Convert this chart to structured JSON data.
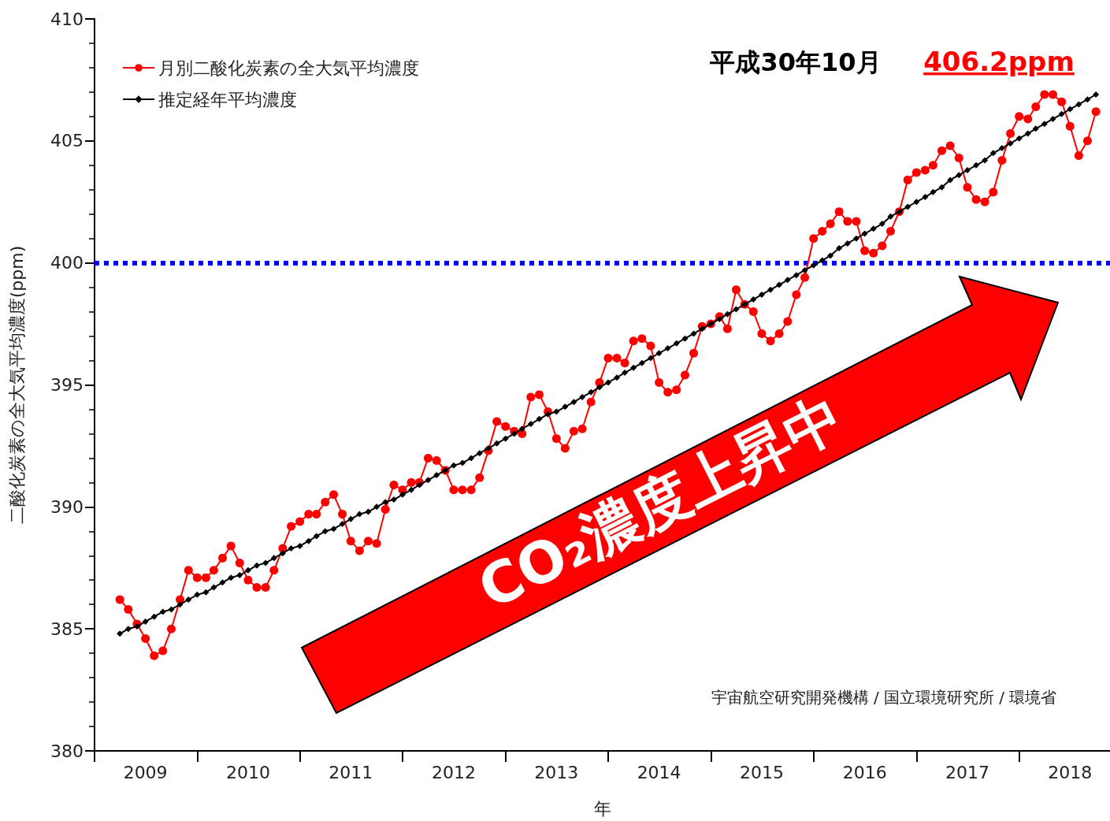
{
  "chart_data": {
    "type": "line",
    "xlabel": "年",
    "ylabel": "二酸化炭素の全大気平均濃度(ppm)",
    "x": [
      "2009-04",
      "2009-05",
      "2009-06",
      "2009-07",
      "2009-08",
      "2009-09",
      "2009-10",
      "2009-11",
      "2009-12",
      "2010-01",
      "2010-02",
      "2010-03",
      "2010-04",
      "2010-05",
      "2010-06",
      "2010-07",
      "2010-08",
      "2010-09",
      "2010-10",
      "2010-11",
      "2010-12",
      "2011-01",
      "2011-02",
      "2011-03",
      "2011-04",
      "2011-05",
      "2011-06",
      "2011-07",
      "2011-08",
      "2011-09",
      "2011-10",
      "2011-11",
      "2011-12",
      "2012-01",
      "2012-02",
      "2012-03",
      "2012-04",
      "2012-05",
      "2012-06",
      "2012-07",
      "2012-08",
      "2012-09",
      "2012-10",
      "2012-11",
      "2012-12",
      "2013-01",
      "2013-02",
      "2013-03",
      "2013-04",
      "2013-05",
      "2013-06",
      "2013-07",
      "2013-08",
      "2013-09",
      "2013-10",
      "2013-11",
      "2013-12",
      "2014-01",
      "2014-02",
      "2014-03",
      "2014-04",
      "2014-05",
      "2014-06",
      "2014-07",
      "2014-08",
      "2014-09",
      "2014-10",
      "2014-11",
      "2014-12",
      "2015-01",
      "2015-02",
      "2015-03",
      "2015-04",
      "2015-05",
      "2015-06",
      "2015-07",
      "2015-08",
      "2015-09",
      "2015-10",
      "2015-11",
      "2015-12",
      "2016-01",
      "2016-02",
      "2016-03",
      "2016-04",
      "2016-05",
      "2016-06",
      "2016-07",
      "2016-08",
      "2016-09",
      "2016-10",
      "2016-11",
      "2016-12",
      "2017-01",
      "2017-02",
      "2017-03",
      "2017-04",
      "2017-05",
      "2017-06",
      "2017-07",
      "2017-08",
      "2017-09",
      "2017-10",
      "2017-11",
      "2017-12",
      "2018-01",
      "2018-02",
      "2018-03",
      "2018-04",
      "2018-05",
      "2018-06",
      "2018-07",
      "2018-08",
      "2018-09",
      "2018-10"
    ],
    "series": [
      {
        "name": "月別二酸化炭素の全大気平均濃度",
        "color": "#ff0000",
        "marker": "circle",
        "values": [
          386.2,
          385.8,
          385.2,
          384.6,
          383.9,
          384.1,
          385.0,
          386.2,
          387.4,
          387.1,
          387.1,
          387.4,
          387.9,
          388.4,
          387.7,
          387.0,
          386.7,
          386.7,
          387.4,
          388.3,
          389.2,
          389.4,
          389.7,
          389.7,
          390.2,
          390.5,
          389.7,
          388.6,
          388.2,
          388.6,
          388.5,
          389.9,
          390.9,
          390.7,
          391.0,
          391.0,
          392.0,
          391.9,
          391.5,
          390.7,
          390.7,
          390.7,
          391.2,
          392.3,
          393.5,
          393.3,
          393.1,
          393.0,
          394.5,
          394.6,
          393.9,
          392.8,
          392.4,
          393.1,
          393.2,
          394.3,
          395.1,
          396.1,
          396.1,
          395.9,
          396.8,
          396.9,
          396.6,
          395.1,
          394.7,
          394.8,
          395.4,
          396.3,
          397.4,
          397.5,
          397.8,
          397.3,
          398.9,
          398.3,
          398.0,
          397.1,
          396.8,
          397.1,
          397.6,
          398.7,
          399.4,
          401.0,
          401.3,
          401.6,
          402.1,
          401.7,
          401.7,
          400.5,
          400.4,
          400.7,
          401.3,
          402.1,
          403.4,
          403.7,
          403.8,
          404.0,
          404.6,
          404.8,
          404.3,
          403.1,
          402.6,
          402.5,
          402.9,
          404.2,
          405.3,
          406.0,
          405.9,
          406.4,
          406.9,
          406.9,
          406.6,
          405.6,
          404.4,
          405.0,
          406.2
        ]
      },
      {
        "name": "推定経年平均濃度",
        "color": "#000000",
        "marker": "diamond",
        "values": [
          384.8,
          385.0,
          385.1,
          385.3,
          385.5,
          385.7,
          385.8,
          386.0,
          386.2,
          386.4,
          386.5,
          386.7,
          386.9,
          387.1,
          387.2,
          387.4,
          387.6,
          387.7,
          387.9,
          388.1,
          388.3,
          388.4,
          388.6,
          388.8,
          389.0,
          389.1,
          389.3,
          389.5,
          389.7,
          389.8,
          390.0,
          390.2,
          390.3,
          390.5,
          390.7,
          390.9,
          391.1,
          391.3,
          391.5,
          391.7,
          391.8,
          392.0,
          392.2,
          392.4,
          392.6,
          392.8,
          393.0,
          393.2,
          393.4,
          393.6,
          393.8,
          393.9,
          394.1,
          394.3,
          394.5,
          394.7,
          394.9,
          395.1,
          395.3,
          395.5,
          395.7,
          395.9,
          396.1,
          396.3,
          396.5,
          396.7,
          396.9,
          397.1,
          397.3,
          397.5,
          397.7,
          397.9,
          398.1,
          398.3,
          398.5,
          398.7,
          398.9,
          399.1,
          399.3,
          399.5,
          399.7,
          399.9,
          400.1,
          400.3,
          400.6,
          400.8,
          401.0,
          401.2,
          401.4,
          401.6,
          401.9,
          402.1,
          402.3,
          402.5,
          402.7,
          402.9,
          403.1,
          403.4,
          403.6,
          403.8,
          404.0,
          404.2,
          404.5,
          404.7,
          404.9,
          405.1,
          405.3,
          405.5,
          405.7,
          405.9,
          406.1,
          406.3,
          406.5,
          406.7,
          406.9
        ]
      }
    ],
    "xlim": [
      "2009-01",
      "2018-11-20"
    ],
    "xticks": [
      {
        "value": "2009-01",
        "label": null
      },
      {
        "value": "2009-07",
        "label": "2009"
      },
      {
        "value": "2010-01",
        "label": null
      },
      {
        "value": "2010-07",
        "label": "2010"
      },
      {
        "value": "2011-01",
        "label": null
      },
      {
        "value": "2011-07",
        "label": "2011"
      },
      {
        "value": "2012-01",
        "label": null
      },
      {
        "value": "2012-07",
        "label": "2012"
      },
      {
        "value": "2013-01",
        "label": null
      },
      {
        "value": "2013-07",
        "label": "2013"
      },
      {
        "value": "2014-01",
        "label": null
      },
      {
        "value": "2014-07",
        "label": "2014"
      },
      {
        "value": "2015-01",
        "label": null
      },
      {
        "value": "2015-07",
        "label": "2015"
      },
      {
        "value": "2016-01",
        "label": null
      },
      {
        "value": "2016-07",
        "label": "2016"
      },
      {
        "value": "2017-01",
        "label": null
      },
      {
        "value": "2017-07",
        "label": "2017"
      },
      {
        "value": "2018-01",
        "label": null
      },
      {
        "value": "2018-07",
        "label": "2018"
      }
    ],
    "ylim": [
      380,
      410
    ],
    "yticks": [
      380,
      385,
      390,
      395,
      400,
      405,
      410
    ],
    "ref_lines": [
      {
        "axis": "y",
        "value": 400,
        "color": "#0000ff",
        "line_style": "dotted"
      }
    ],
    "grid": false,
    "legend": "top left",
    "annotations": [
      "平成30年10月",
      "406.2ppm",
      "CO₂濃度上昇中",
      "宇宙航空研究開発機構 / 国立環境研究所 / 環境省"
    ]
  }
}
